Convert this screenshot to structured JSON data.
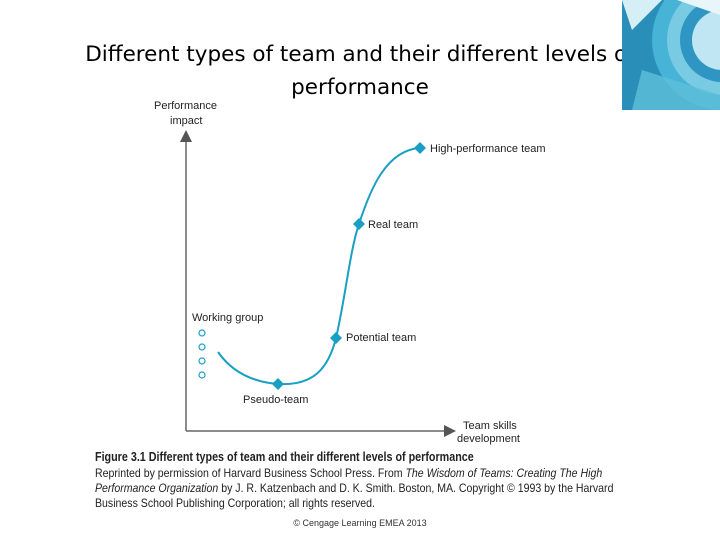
{
  "slide": {
    "title": "Different types of team and their different levels of performance",
    "footer": "© Cengage Learning EMEA 2013"
  },
  "diagram": {
    "y_axis_label_line1": "Performance",
    "y_axis_label_line2": "impact",
    "x_axis_label_line1": "Team skills",
    "x_axis_label_line2": "development",
    "points": {
      "working_group": "Working group",
      "pseudo_team": "Pseudo-team",
      "potential_team": "Potential team",
      "real_team": "Real team",
      "high_performance_team": "High-performance team"
    },
    "curve_color": "#1a9fc4"
  },
  "caption": {
    "title": "Figure 3.1    Different types of team and their different levels of performance",
    "body_prefix": "Reprinted by permission of Harvard Business School Press. From ",
    "body_book": "The Wisdom of Teams: Creating The High Performance Organization",
    "body_suffix": " by J. R. Katzenbach and D. K. Smith. Boston, MA. Copyright © 1993 by the Harvard Business School Publishing Corporation; all rights reserved."
  }
}
